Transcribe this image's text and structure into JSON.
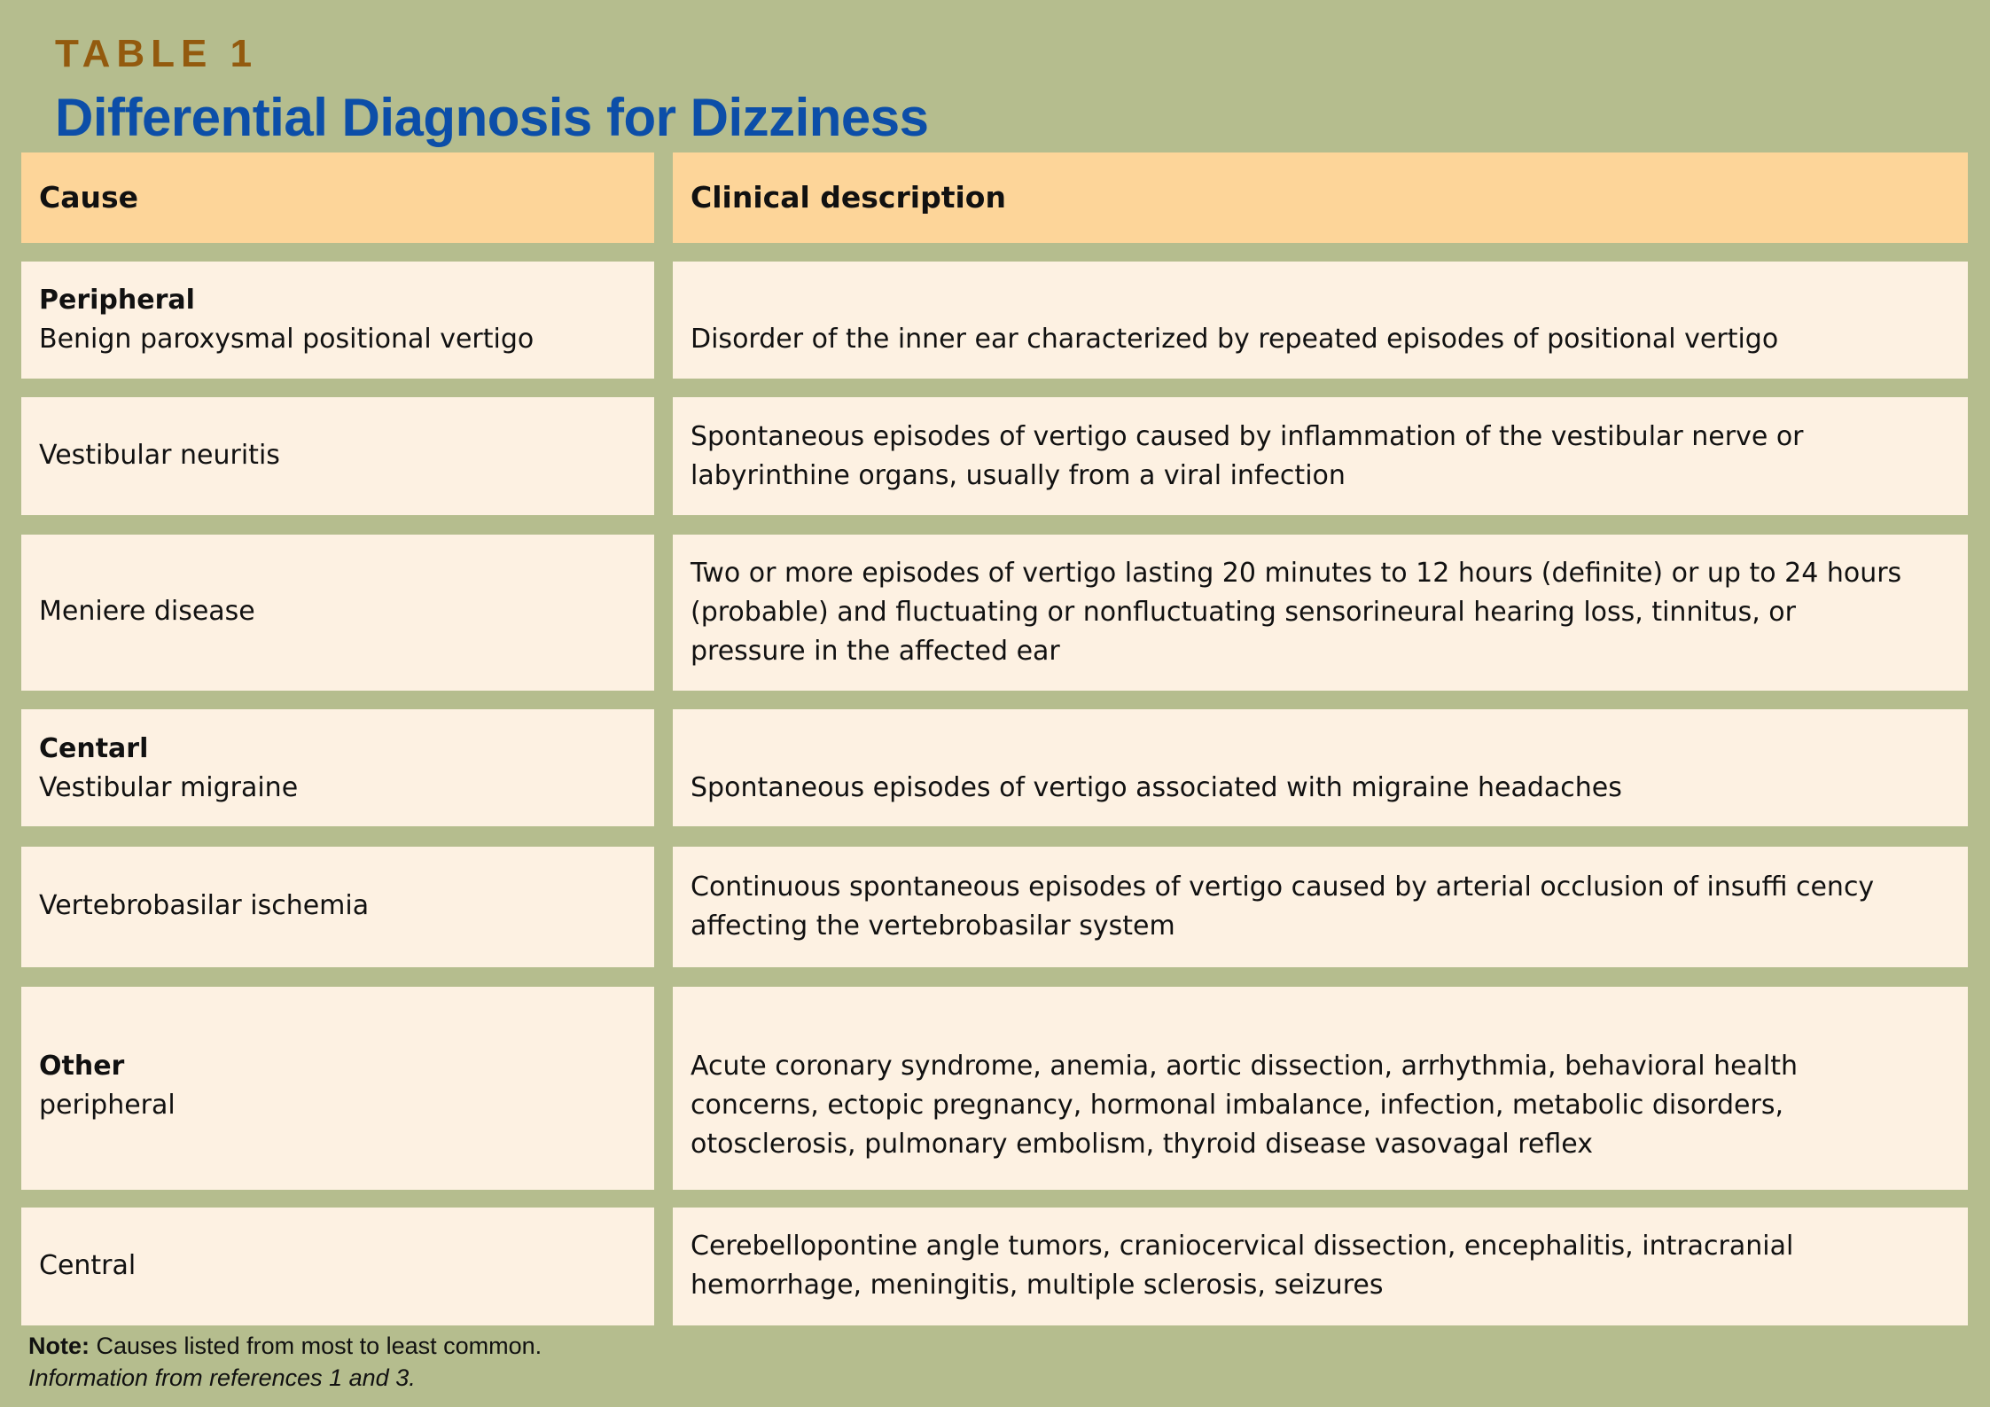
{
  "label": "TABLE 1",
  "title": "Differential Diagnosis for Dizziness",
  "columns": [
    "Cause",
    "Clinical description"
  ],
  "rows": [
    {
      "group": "Peripheral",
      "cause": "Benign paroxysmal positional vertigo",
      "description": "Disorder of the inner ear characterized by repeated episodes of positional vertigo"
    },
    {
      "cause": "Vestibular neuritis",
      "description": "Spontaneous episodes of vertigo caused by inflammation of the vestibular nerve or labyrinthine organs, usually from a viral infection"
    },
    {
      "cause": "Meniere disease",
      "description": "Two or more episodes of vertigo lasting 20 minutes to 12 hours (definite) or up to 24 hours (probable) and fluctuating or nonfluctuating sensorineural hearing loss, tinnitus, or pressure in the affected ear"
    },
    {
      "group": "Centarl",
      "cause": "Vestibular migraine",
      "description": "Spontaneous episodes of vertigo associated with migraine headaches"
    },
    {
      "cause": "Vertebrobasilar ischemia",
      "description": "Continuous spontaneous episodes of vertigo caused by arterial occlusion of insuffi cency affecting the vertebrobasilar system"
    },
    {
      "group": "Other",
      "cause": "peripheral",
      "description": "Acute coronary syndrome, anemia, aortic dissection, arrhythmia, behavioral health concerns, ectopic pregnancy, hormonal imbalance, infection, metabolic disorders, otosclerosis, pulmonary embolism, thyroid disease vasovagal reflex"
    },
    {
      "cause": "Central",
      "description": "Cerebellopontine angle tumors, craniocervical dissection, encephalitis, intracranial hemorrhage, meningitis, multiple sclerosis, seizures"
    }
  ],
  "note": {
    "label": "Note:",
    "text": " Causes listed from most to least common.",
    "source": "Information from references 1 and 3."
  },
  "colors": {
    "background": "#b5bd8e",
    "header": "#fdd599",
    "cell": "#fdf1e2",
    "label": "#935a0e",
    "title": "#0c4ea8"
  }
}
